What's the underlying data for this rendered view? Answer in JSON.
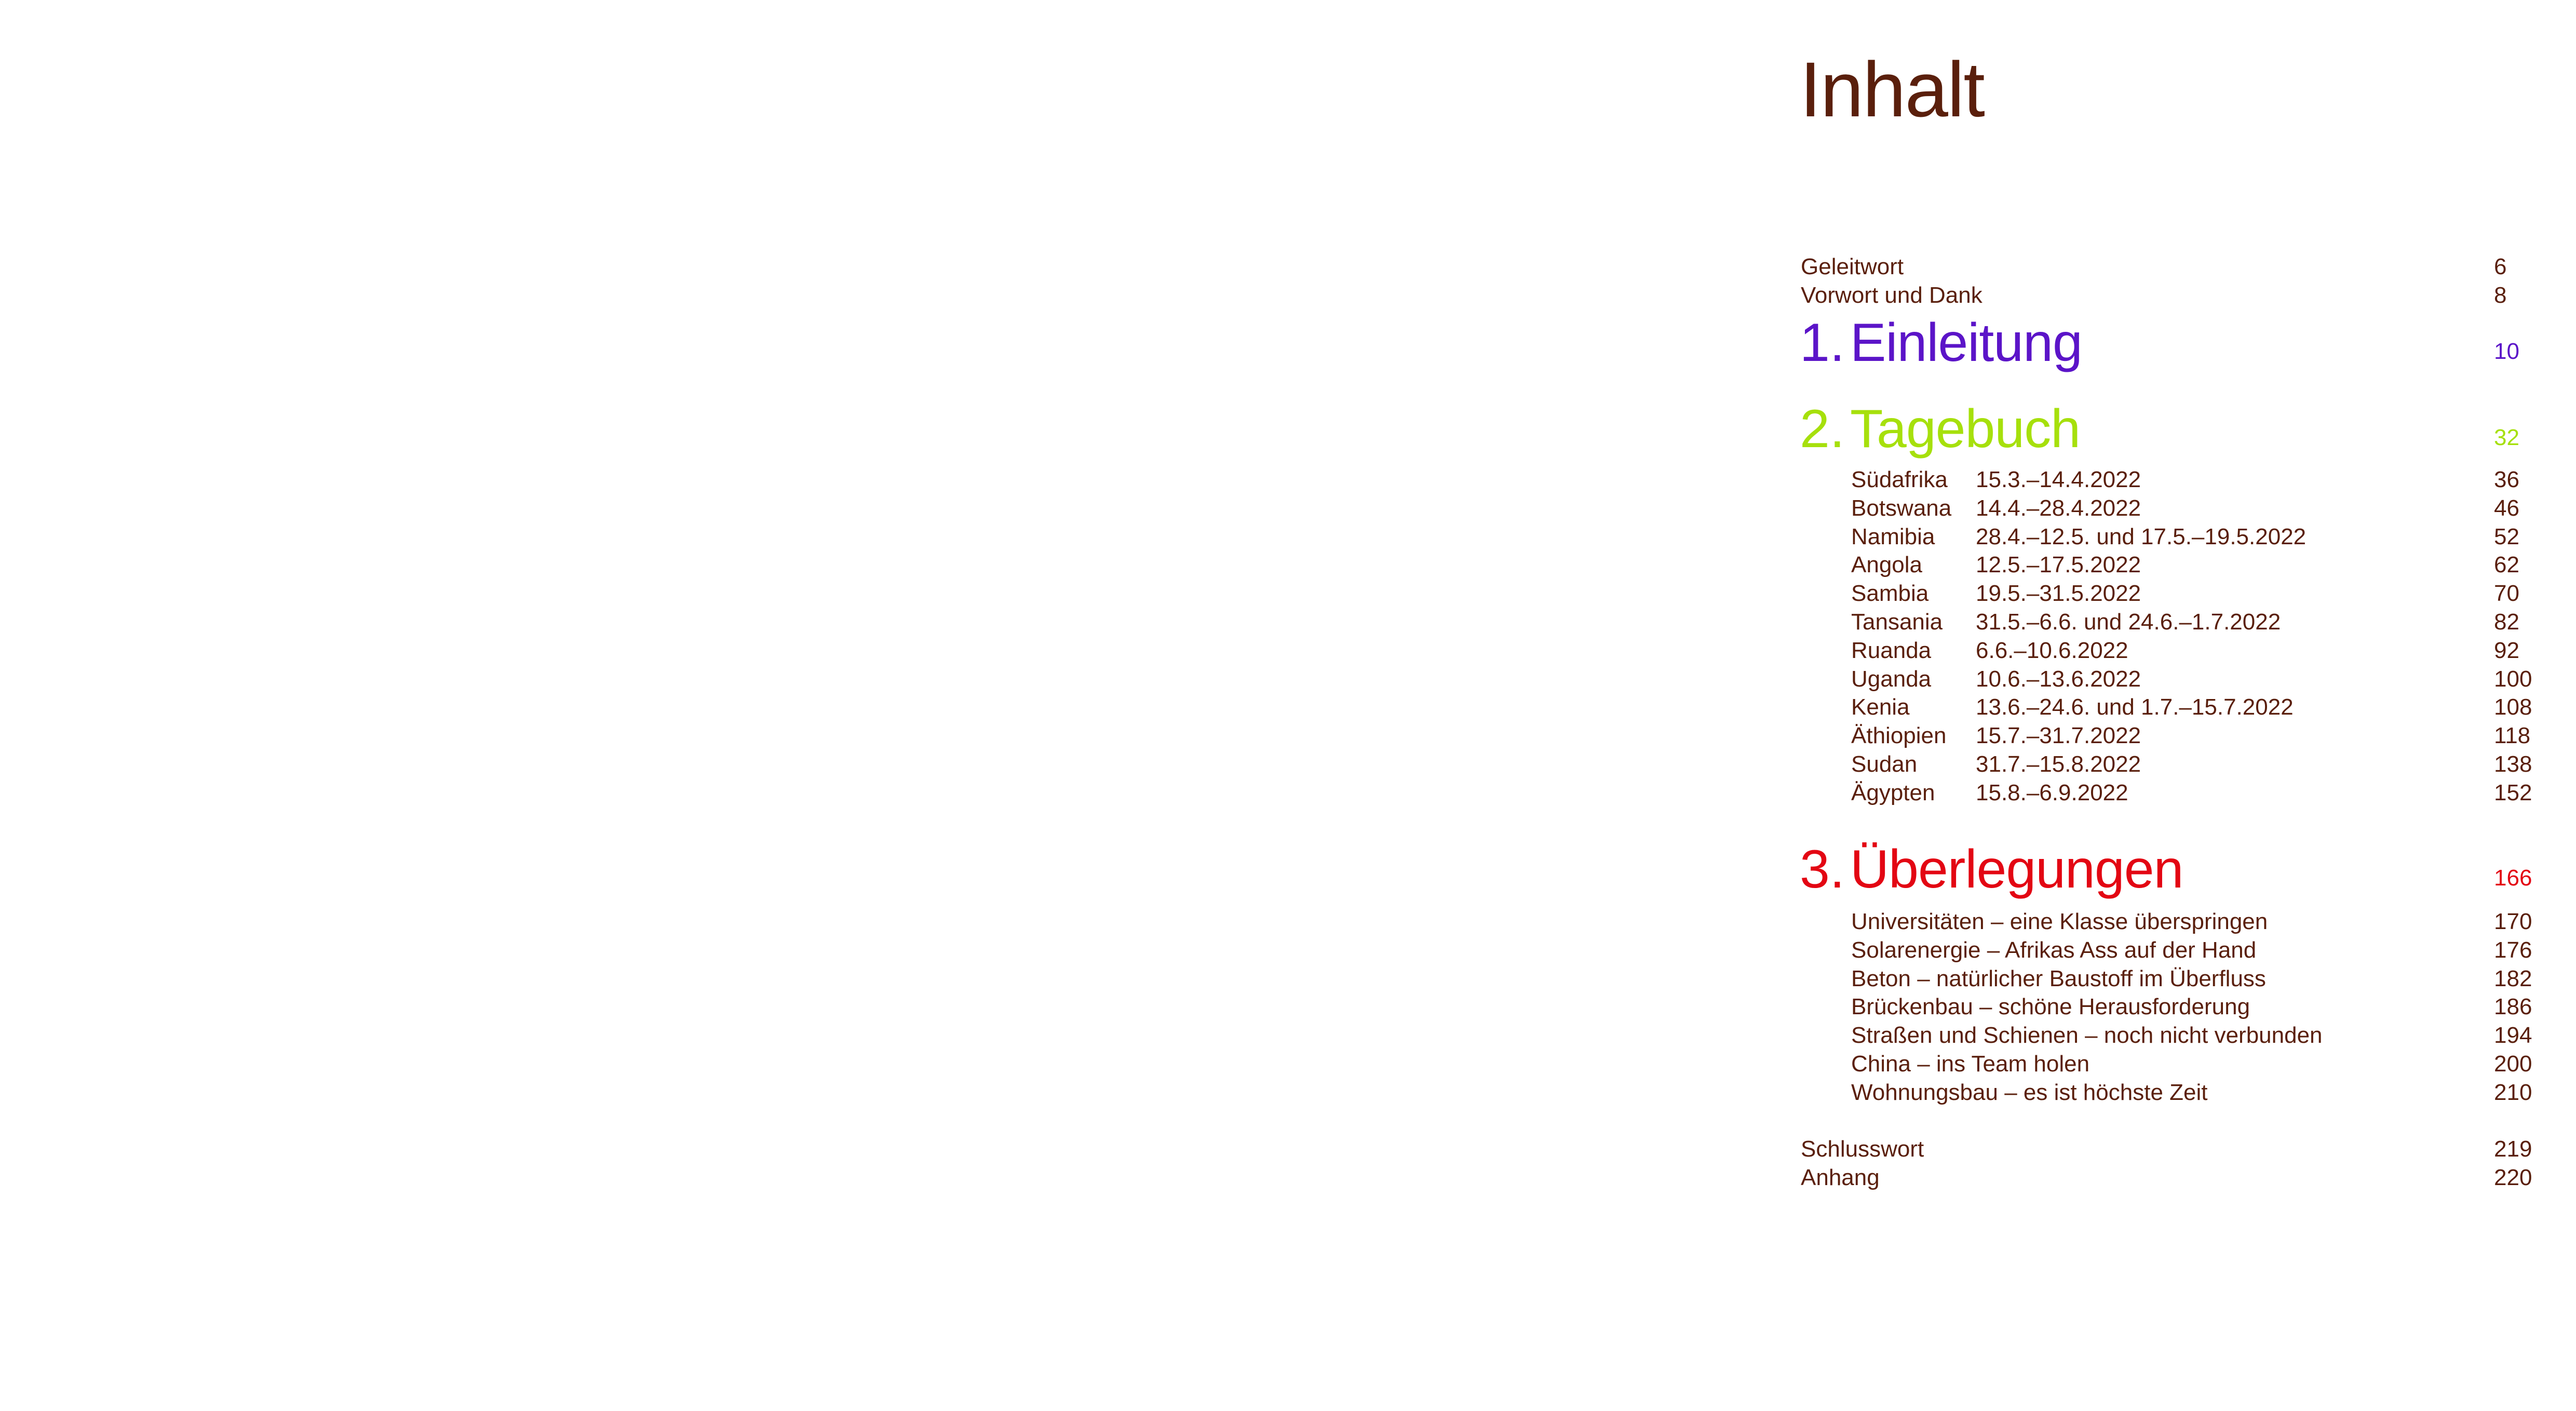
{
  "title": "Inhalt",
  "colors": {
    "text": "#5a1f0c",
    "chapter1": "#5b14c8",
    "chapter2": "#a6e00c",
    "chapter3": "#e30613"
  },
  "front": [
    {
      "label": "Geleitwort",
      "page": "6"
    },
    {
      "label": "Vorwort und Dank",
      "page": "8"
    }
  ],
  "chapters": [
    {
      "number": "1.",
      "label": "Einleitung",
      "page": "10",
      "items": []
    },
    {
      "number": "2.",
      "label": "Tagebuch",
      "page": "32",
      "items": [
        {
          "label": "Südafrika",
          "date": "15.3.–14.4.2022",
          "page": "36"
        },
        {
          "label": "Botswana",
          "date": "14.4.–28.4.2022",
          "page": "46"
        },
        {
          "label": "Namibia",
          "date": "28.4.–12.5. und 17.5.–19.5.2022",
          "page": "52"
        },
        {
          "label": "Angola",
          "date": "12.5.–17.5.2022",
          "page": "62"
        },
        {
          "label": "Sambia",
          "date": "19.5.–31.5.2022",
          "page": "70"
        },
        {
          "label": "Tansania",
          "date": "31.5.–6.6. und 24.6.–1.7.2022",
          "page": "82"
        },
        {
          "label": "Ruanda",
          "date": "6.6.–10.6.2022",
          "page": "92"
        },
        {
          "label": "Uganda",
          "date": "10.6.–13.6.2022",
          "page": "100"
        },
        {
          "label": "Kenia",
          "date": "13.6.–24.6. und 1.7.–15.7.2022",
          "page": "108"
        },
        {
          "label": "Äthiopien",
          "date": "15.7.–31.7.2022",
          "page": "118"
        },
        {
          "label": "Sudan",
          "date": "31.7.–15.8.2022",
          "page": "138"
        },
        {
          "label": "Ägypten",
          "date": "15.8.–6.9.2022",
          "page": "152"
        }
      ]
    },
    {
      "number": "3.",
      "label": "Überlegungen",
      "page": "166",
      "items": [
        {
          "label": "Universitäten – eine Klasse überspringen",
          "page": "170"
        },
        {
          "label": "Solarenergie – Afrikas Ass auf der Hand",
          "page": "176"
        },
        {
          "label": "Beton – natürlicher Baustoff im Überfluss",
          "page": "182"
        },
        {
          "label": "Brückenbau – schöne Herausforderung",
          "page": "186"
        },
        {
          "label": "Straßen und Schienen – noch nicht verbunden",
          "page": "194"
        },
        {
          "label": "China – ins Team holen",
          "page": "200"
        },
        {
          "label": "Wohnungsbau – es ist höchste Zeit",
          "page": "210"
        }
      ]
    }
  ],
  "back": [
    {
      "label": "Schlusswort",
      "page": "219"
    },
    {
      "label": "Anhang",
      "page": "220"
    }
  ]
}
